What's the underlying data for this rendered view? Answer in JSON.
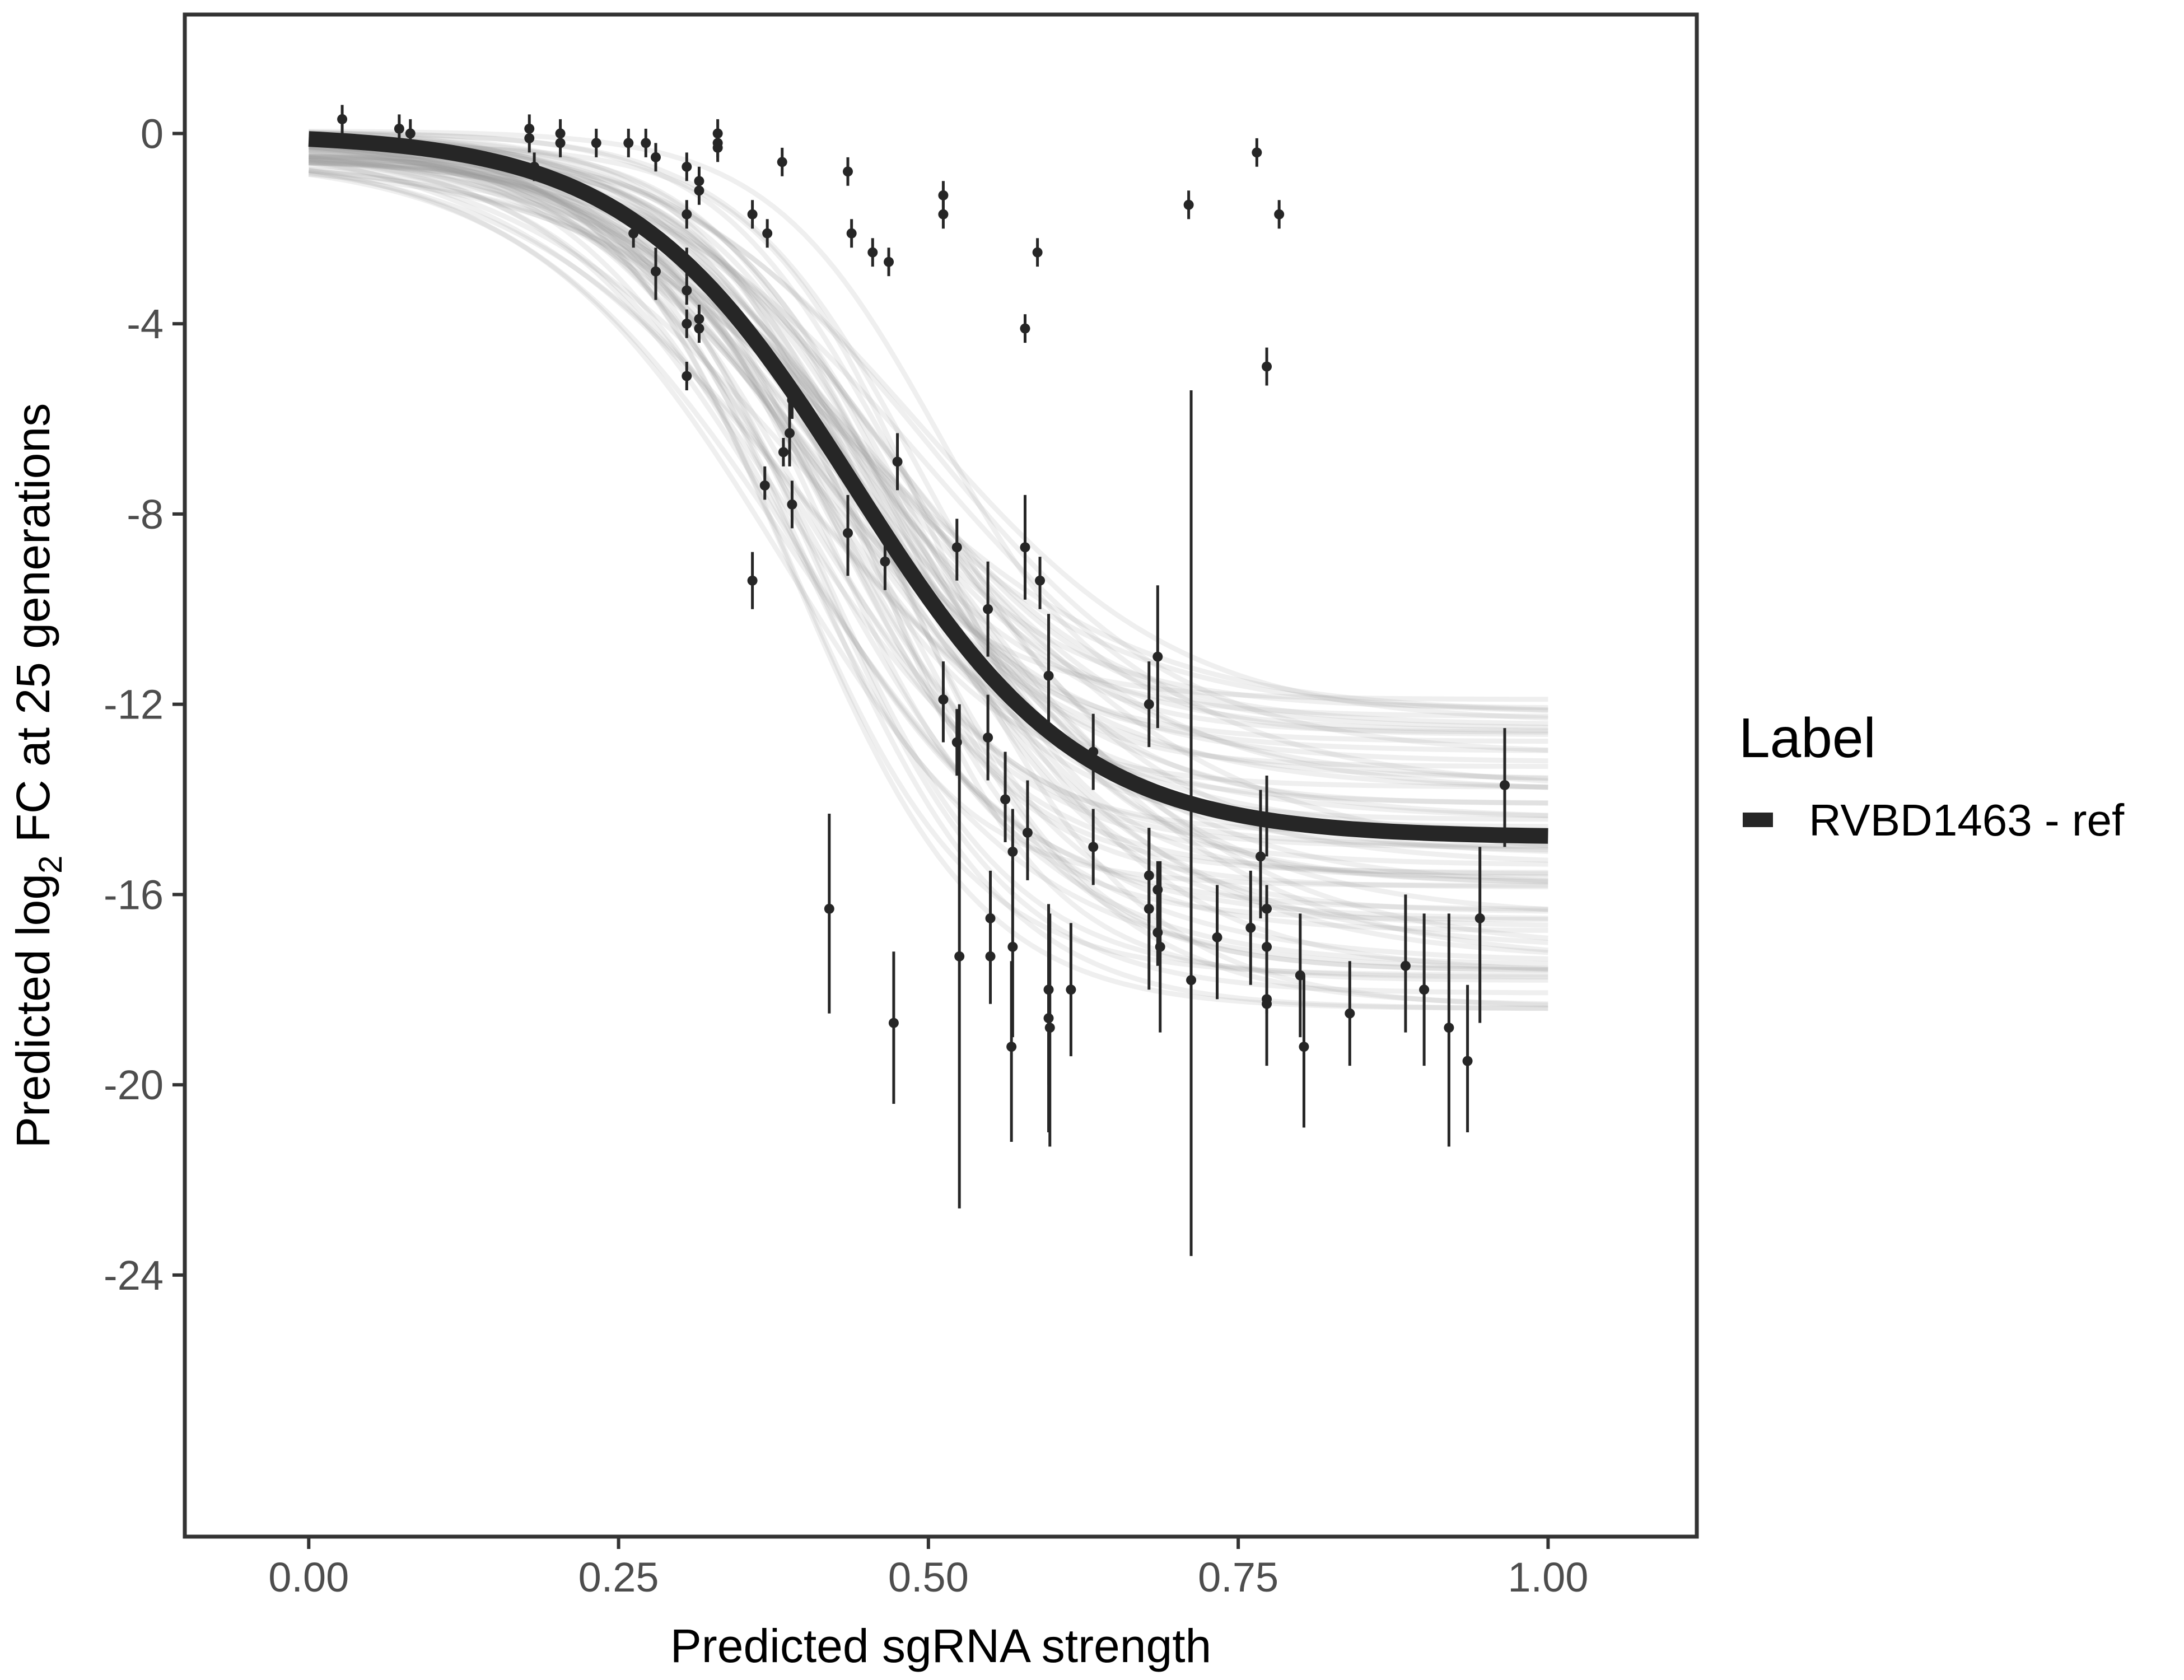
{
  "chart_data": {
    "type": "scatter",
    "title": "",
    "xlabel": "Predicted sgRNA strength",
    "ylabel_parts": [
      "Predicted  log",
      "2",
      " FC at 25 generations"
    ],
    "xlim": [
      -0.1,
      1.12
    ],
    "ylim": [
      -29.5,
      2.5
    ],
    "x_ticks": [
      0.0,
      0.25,
      0.5,
      0.75,
      1.0
    ],
    "x_tick_labels": [
      "0.00",
      "0.25",
      "0.50",
      "0.75",
      "1.00"
    ],
    "y_ticks": [
      0,
      -4,
      -8,
      -12,
      -16,
      -20,
      -24
    ],
    "y_tick_labels": [
      "0",
      "-4",
      "-8",
      "-12",
      "-16",
      "-20",
      "-24"
    ],
    "grid": false,
    "legend": {
      "title": "Label",
      "placement": "right",
      "entries": [
        "RVBD1463 - ref"
      ]
    },
    "colors": {
      "fit": "#262626",
      "band": "#9e9e9e",
      "points": "#262626",
      "frame": "#333333"
    },
    "fit_curve": {
      "x_start": 0.0,
      "x_end": 1.0,
      "y_max": 0.0,
      "y_min": -14.8,
      "midpoint": 0.44,
      "slope": 11.0
    },
    "band_curves": {
      "count": 70,
      "lower_asymptote_range": [
        -18.4,
        -11.9
      ],
      "midpoint_range": [
        0.38,
        0.51
      ],
      "slope_range": [
        8.0,
        15.0
      ],
      "top_range": [
        -0.6,
        0.1
      ]
    },
    "series": [
      {
        "name": "RVBD1463 - ref",
        "points": [
          [
            0.027,
            0.3,
            0.0,
            0.6
          ],
          [
            0.073,
            0.1,
            -0.2,
            0.4
          ],
          [
            0.082,
            0.0,
            -0.3,
            0.3
          ],
          [
            0.178,
            0.1,
            -0.2,
            0.4
          ],
          [
            0.178,
            -0.1,
            -0.4,
            0.2
          ],
          [
            0.182,
            -0.7,
            -1.0,
            -0.4
          ],
          [
            0.203,
            0.0,
            -0.3,
            0.3
          ],
          [
            0.203,
            -0.2,
            -0.5,
            0.1
          ],
          [
            0.232,
            -0.2,
            -0.5,
            0.1
          ],
          [
            0.258,
            -0.2,
            -0.5,
            0.1
          ],
          [
            0.262,
            -2.1,
            -2.4,
            -1.8
          ],
          [
            0.272,
            -0.2,
            -0.5,
            0.1
          ],
          [
            0.28,
            -0.5,
            -0.8,
            -0.2
          ],
          [
            0.28,
            -2.9,
            -3.5,
            -2.4
          ],
          [
            0.305,
            -0.7,
            -1.0,
            -0.4
          ],
          [
            0.305,
            -1.7,
            -2.0,
            -1.4
          ],
          [
            0.305,
            -2.7,
            -3.0,
            -2.4
          ],
          [
            0.305,
            -3.3,
            -3.6,
            -3.0
          ],
          [
            0.305,
            -4.0,
            -4.3,
            -3.7
          ],
          [
            0.305,
            -5.1,
            -5.4,
            -4.8
          ],
          [
            0.315,
            -1.0,
            -1.3,
            -0.7
          ],
          [
            0.315,
            -1.2,
            -1.5,
            -0.9
          ],
          [
            0.315,
            -3.9,
            -4.2,
            -3.6
          ],
          [
            0.315,
            -4.1,
            -4.4,
            -3.8
          ],
          [
            0.33,
            0.0,
            -0.3,
            0.3
          ],
          [
            0.33,
            -0.2,
            -0.5,
            0.1
          ],
          [
            0.33,
            -0.3,
            -0.6,
            0.0
          ],
          [
            0.358,
            -1.7,
            -2.0,
            -1.4
          ],
          [
            0.358,
            -9.4,
            -10.0,
            -8.8
          ],
          [
            0.37,
            -2.1,
            -2.4,
            -1.8
          ],
          [
            0.368,
            -7.4,
            -7.7,
            -7.0
          ],
          [
            0.382,
            -0.6,
            -0.9,
            -0.3
          ],
          [
            0.383,
            -6.7,
            -7.0,
            -6.4
          ],
          [
            0.388,
            -6.3,
            -7.0,
            -5.6
          ],
          [
            0.39,
            -5.6,
            -6.0,
            -5.3
          ],
          [
            0.39,
            -7.8,
            -8.3,
            -7.3
          ],
          [
            0.42,
            -16.3,
            -18.5,
            -14.3
          ],
          [
            0.435,
            -0.8,
            -1.1,
            -0.5
          ],
          [
            0.438,
            -2.1,
            -2.4,
            -1.8
          ],
          [
            0.435,
            -8.4,
            -9.3,
            -7.6
          ],
          [
            0.455,
            -2.5,
            -2.8,
            -2.2
          ],
          [
            0.465,
            -9.0,
            -9.6,
            -8.4
          ],
          [
            0.468,
            -2.7,
            -3.0,
            -2.4
          ],
          [
            0.472,
            -18.7,
            -20.4,
            -17.2
          ],
          [
            0.475,
            -6.9,
            -7.5,
            -6.3
          ],
          [
            0.512,
            -1.3,
            -1.6,
            -1.0
          ],
          [
            0.512,
            -1.7,
            -2.0,
            -1.4
          ],
          [
            0.512,
            -11.9,
            -12.8,
            -11.1
          ],
          [
            0.523,
            -8.7,
            -9.4,
            -8.1
          ],
          [
            0.523,
            -12.8,
            -13.5,
            -12.1
          ],
          [
            0.525,
            -17.3,
            -22.6,
            -12.0
          ],
          [
            0.548,
            -10.0,
            -11.0,
            -9.0
          ],
          [
            0.548,
            -12.7,
            -13.6,
            -11.8
          ],
          [
            0.55,
            -16.5,
            -17.5,
            -15.5
          ],
          [
            0.55,
            -17.3,
            -18.3,
            -16.2
          ],
          [
            0.562,
            -14.0,
            -14.9,
            -13.0
          ],
          [
            0.567,
            -19.2,
            -21.2,
            -17.4
          ],
          [
            0.568,
            -17.1,
            -19.0,
            -15.3
          ],
          [
            0.568,
            -15.1,
            -16.0,
            -14.2
          ],
          [
            0.578,
            -4.1,
            -4.4,
            -3.8
          ],
          [
            0.578,
            -8.7,
            -9.8,
            -7.6
          ],
          [
            0.58,
            -14.7,
            -15.7,
            -13.6
          ],
          [
            0.588,
            -2.5,
            -2.8,
            -2.2
          ],
          [
            0.59,
            -9.4,
            -10.0,
            -8.9
          ],
          [
            0.597,
            -11.4,
            -12.6,
            -10.1
          ],
          [
            0.597,
            -18.0,
            -20.0,
            -16.2
          ],
          [
            0.597,
            -18.6,
            -21.0,
            -16.5
          ],
          [
            0.598,
            -18.8,
            -21.3,
            -16.4
          ],
          [
            0.615,
            -18.0,
            -19.4,
            -16.6
          ],
          [
            0.633,
            -13.0,
            -13.8,
            -12.2
          ],
          [
            0.633,
            -15.0,
            -15.8,
            -14.2
          ],
          [
            0.678,
            -12.0,
            -12.9,
            -11.1
          ],
          [
            0.678,
            -15.6,
            -16.6,
            -14.6
          ],
          [
            0.678,
            -16.3,
            -18.0,
            -14.6
          ],
          [
            0.685,
            -11.0,
            -12.5,
            -9.5
          ],
          [
            0.685,
            -15.9,
            -16.5,
            -15.3
          ],
          [
            0.685,
            -16.8,
            -17.5,
            -16.0
          ],
          [
            0.687,
            -17.1,
            -18.9,
            -15.3
          ],
          [
            0.71,
            -1.5,
            -1.8,
            -1.2
          ],
          [
            0.712,
            -17.8,
            -23.6,
            -5.4
          ],
          [
            0.733,
            -16.9,
            -18.2,
            -15.8
          ],
          [
            0.76,
            -16.7,
            -17.9,
            -15.5
          ],
          [
            0.765,
            -0.4,
            -0.7,
            -0.1
          ],
          [
            0.768,
            -15.2,
            -16.5,
            -13.8
          ],
          [
            0.773,
            -4.9,
            -5.3,
            -4.5
          ],
          [
            0.773,
            -14.4,
            -15.2,
            -13.5
          ],
          [
            0.773,
            -16.3,
            -16.9,
            -15.8
          ],
          [
            0.773,
            -17.1,
            -18.2,
            -16.0
          ],
          [
            0.773,
            -18.2,
            -19.6,
            -16.9
          ],
          [
            0.773,
            -18.3,
            -18.5,
            -18.1
          ],
          [
            0.783,
            -1.7,
            -2.0,
            -1.4
          ],
          [
            0.8,
            -17.7,
            -19.0,
            -16.4
          ],
          [
            0.803,
            -19.2,
            -20.9,
            -17.7
          ],
          [
            0.84,
            -18.5,
            -19.6,
            -17.4
          ],
          [
            0.885,
            -17.5,
            -18.9,
            -16.0
          ],
          [
            0.9,
            -18.0,
            -19.6,
            -16.4
          ],
          [
            0.92,
            -18.8,
            -21.3,
            -16.4
          ],
          [
            0.935,
            -19.5,
            -21.0,
            -17.9
          ],
          [
            0.945,
            -16.5,
            -18.7,
            -15.0
          ],
          [
            0.965,
            -13.7,
            -15.0,
            -12.5
          ]
        ]
      }
    ]
  }
}
